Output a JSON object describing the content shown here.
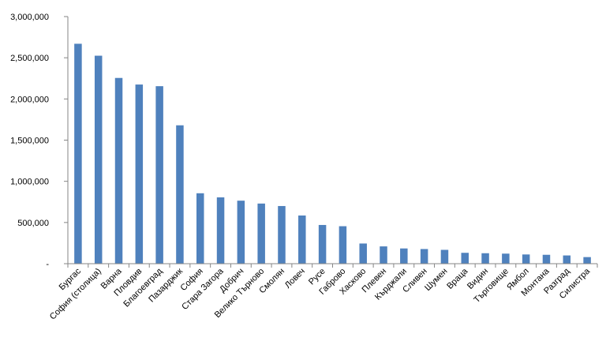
{
  "chart_data": {
    "type": "bar",
    "title": "",
    "xlabel": "",
    "ylabel": "",
    "ylim": [
      0,
      3000000
    ],
    "y_ticks": [
      {
        "value": 0,
        "label": "-"
      },
      {
        "value": 500000,
        "label": "500,000"
      },
      {
        "value": 1000000,
        "label": "1,000,000"
      },
      {
        "value": 1500000,
        "label": "1,500,000"
      },
      {
        "value": 2000000,
        "label": "2,000,000"
      },
      {
        "value": 2500000,
        "label": "2,500,000"
      },
      {
        "value": 3000000,
        "label": "3,000,000"
      }
    ],
    "grid": false,
    "legend": "none",
    "bar_color": "#4F81BD",
    "categories": [
      "Бургас",
      "София (столица)",
      "Варна",
      "Пловдив",
      "Благоевград",
      "Пазарджик",
      "София",
      "Стара Загора",
      "Добрич",
      "Велико Търново",
      "Смолян",
      "Ловеч",
      "Русе",
      "Габрово",
      "Хасково",
      "Плевен",
      "Кърджали",
      "Сливен",
      "Шумен",
      "Враца",
      "Видин",
      "Търговище",
      "Ямбол",
      "Монтана",
      "Разград",
      "Силистра"
    ],
    "values": [
      2670000,
      2525000,
      2255000,
      2175000,
      2155000,
      1680000,
      855000,
      805000,
      765000,
      730000,
      700000,
      585000,
      470000,
      455000,
      245000,
      210000,
      185000,
      178000,
      168000,
      132000,
      127000,
      122000,
      112000,
      108000,
      100000,
      80000
    ]
  }
}
